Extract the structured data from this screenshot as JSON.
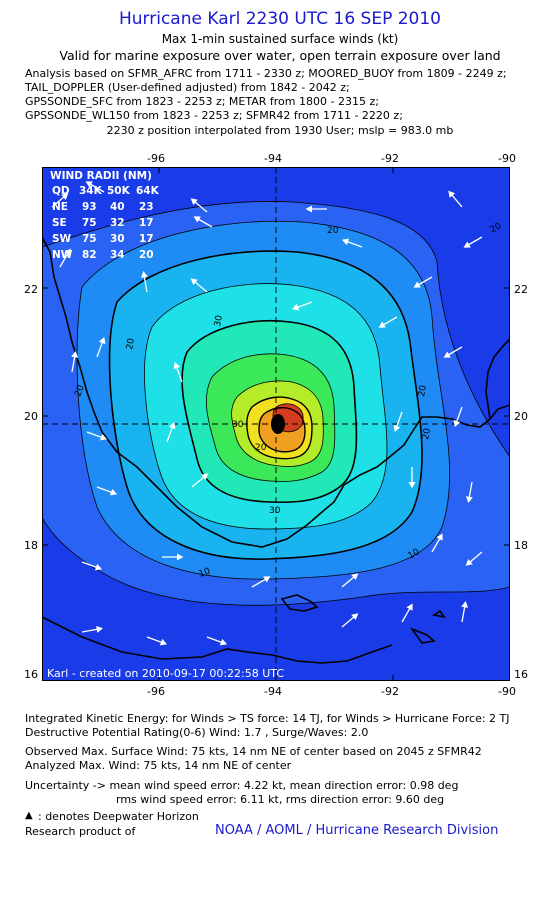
{
  "header": {
    "title": "Hurricane Karl 2230 UTC 16 SEP 2010",
    "subtitle1": "Max 1-min sustained surface winds (kt)",
    "subtitle2": "Valid for marine exposure over water, open terrain exposure over land",
    "analysis": [
      "Analysis based on SFMR_AFRC from 1711 - 2330 z; MOORED_BUOY from 1809 - 2249 z;",
      "TAIL_DOPPLER (User-defined adjusted) from 1842 - 2042 z;",
      "GPSSONDE_SFC from 1823 - 2253 z; METAR from 1800 - 2315 z;",
      "GPSSONDE_WL150 from 1823 - 2253 z; SFMR42 from 1711 - 2220 z;"
    ],
    "position": "2230 z position interpolated from 1930 User; mslp = 983.0 mb"
  },
  "map": {
    "lon_labels": [
      "-96",
      "-94",
      "-92",
      "-90"
    ],
    "lat_labels": [
      "22",
      "20",
      "18",
      "16"
    ],
    "lon_range": [
      -98,
      -90
    ],
    "lat_range": [
      16,
      24
    ],
    "center": {
      "lon": -93.9,
      "lat": 19.85
    },
    "credit": "Karl - created on 2010-09-17 00:22:58 UTC",
    "contour_labels": [
      "30",
      "20",
      "30",
      "20",
      "20",
      "20",
      "20",
      "30",
      "10",
      "10",
      "20",
      "20"
    ],
    "wind_radii": {
      "title": "WIND RADII (NM)",
      "header": [
        "QD",
        "34K",
        "50K",
        "64K"
      ],
      "rows": [
        [
          "NE",
          "93",
          "40",
          "23"
        ],
        [
          "SE",
          "75",
          "32",
          "17"
        ],
        [
          "SW",
          "75",
          "30",
          "17"
        ],
        [
          "NW",
          "82",
          "34",
          "20"
        ]
      ]
    },
    "colors": {
      "ocean_dark": "#1a3ce8",
      "blue": "#2a62f4",
      "mid_blue": "#1f8cf5",
      "light_blue": "#19b4f0",
      "cyan": "#1ee0e6",
      "aqua": "#22e8b8",
      "green": "#3ae85a",
      "lime": "#b4ec2a",
      "yellow": "#f0e020",
      "orange": "#f0a020",
      "red": "#d43c1e",
      "brown": "#9a2a12"
    }
  },
  "footer": {
    "ike": "Integrated Kinetic Energy:  for Winds > TS force: 14 TJ,  for Winds > Hurricane Force: 2 TJ",
    "dpr": "Destructive Potential Rating(0-6)   Wind: 1.7 , Surge/Waves: 2.0",
    "observed": "Observed Max. Surface Wind: 75 kts, 14 nm NE of center based on 2045 z SFMR42",
    "analyzed": "Analyzed Max. Wind: 75 kts, 14 nm NE of center",
    "unc1": "Uncertainty -> mean wind speed error: 4.22 kt,   mean direction error: 0.98 deg",
    "unc2": "rms wind speed error: 6.11 kt,   rms direction error: 9.60 deg",
    "dwh_symbol": "▲",
    "dwh": ": denotes Deepwater Horizon",
    "research": "Research product of",
    "noaa": "NOAA / AOML / Hurricane Research Division"
  }
}
